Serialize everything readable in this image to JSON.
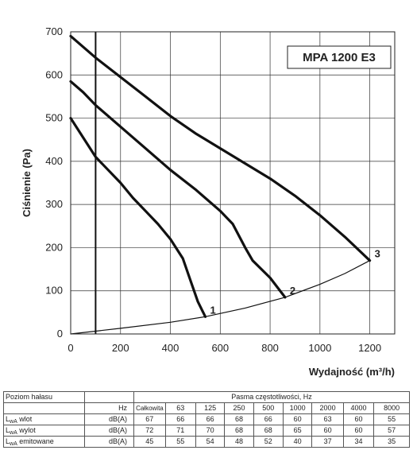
{
  "chart_data": {
    "type": "line",
    "title": "MPA 1200 E3",
    "xlabel": "Wydajność (m³/h)",
    "ylabel": "Ciśnienie (Pa)",
    "xlim": [
      0,
      1300
    ],
    "ylim": [
      0,
      700
    ],
    "x_ticks": [
      "0",
      "200",
      "400",
      "600",
      "800",
      "1000",
      "1200"
    ],
    "y_ticks": [
      "0",
      "100",
      "200",
      "300",
      "400",
      "500",
      "600",
      "700"
    ],
    "grid": true,
    "vertical_marker_x": 100,
    "series": [
      {
        "name": "1",
        "points": [
          [
            0,
            500
          ],
          [
            50,
            455
          ],
          [
            100,
            410
          ],
          [
            150,
            380
          ],
          [
            200,
            350
          ],
          [
            250,
            315
          ],
          [
            300,
            285
          ],
          [
            350,
            255
          ],
          [
            400,
            220
          ],
          [
            450,
            175
          ],
          [
            480,
            125
          ],
          [
            510,
            75
          ],
          [
            540,
            40
          ]
        ]
      },
      {
        "name": "2",
        "points": [
          [
            0,
            585
          ],
          [
            50,
            560
          ],
          [
            100,
            530
          ],
          [
            200,
            480
          ],
          [
            300,
            430
          ],
          [
            400,
            380
          ],
          [
            500,
            335
          ],
          [
            600,
            285
          ],
          [
            650,
            255
          ],
          [
            700,
            200
          ],
          [
            730,
            170
          ],
          [
            800,
            130
          ],
          [
            860,
            85
          ]
        ]
      },
      {
        "name": "3",
        "points": [
          [
            0,
            690
          ],
          [
            100,
            640
          ],
          [
            200,
            595
          ],
          [
            300,
            550
          ],
          [
            400,
            505
          ],
          [
            500,
            465
          ],
          [
            600,
            430
          ],
          [
            700,
            395
          ],
          [
            800,
            360
          ],
          [
            900,
            320
          ],
          [
            1000,
            275
          ],
          [
            1100,
            225
          ],
          [
            1200,
            170
          ]
        ]
      },
      {
        "name": "",
        "points": [
          [
            0,
            0
          ],
          [
            200,
            13
          ],
          [
            400,
            27
          ],
          [
            540,
            40
          ],
          [
            700,
            60
          ],
          [
            860,
            85
          ],
          [
            1000,
            115
          ],
          [
            1100,
            140
          ],
          [
            1200,
            170
          ]
        ]
      }
    ]
  },
  "noise_table": {
    "title": "Poziom hałasu",
    "bands_header": "Pasma częstotliwości, Hz",
    "hz_label": "Hz",
    "columns": [
      "Całkowita",
      "63",
      "125",
      "250",
      "500",
      "1000",
      "2000",
      "4000",
      "8000"
    ],
    "rows": [
      {
        "label_main": "L",
        "label_sub": "wA",
        "label_rest": " wlot",
        "unit": "dB(A)",
        "values": [
          "67",
          "66",
          "66",
          "68",
          "66",
          "60",
          "63",
          "60",
          "55"
        ]
      },
      {
        "label_main": "L",
        "label_sub": "wA",
        "label_rest": " wylot",
        "unit": "dB(A)",
        "values": [
          "72",
          "71",
          "70",
          "68",
          "68",
          "65",
          "60",
          "60",
          "57"
        ]
      },
      {
        "label_main": "L",
        "label_sub": "wA",
        "label_rest": " emitowane",
        "unit": "dB(A)",
        "values": [
          "45",
          "55",
          "54",
          "48",
          "52",
          "40",
          "37",
          "34",
          "35"
        ]
      }
    ]
  }
}
